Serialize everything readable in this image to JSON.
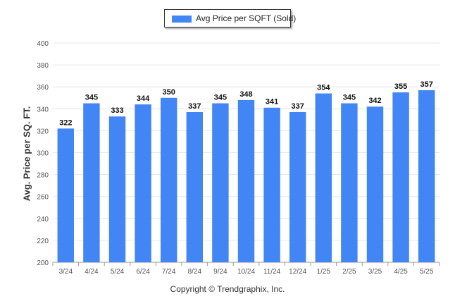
{
  "chart_data": {
    "type": "bar",
    "title": "",
    "xlabel": "",
    "ylabel": "Avg. Price per SQ. FT.",
    "ylim": [
      200,
      400
    ],
    "yticks": [
      200,
      220,
      240,
      260,
      280,
      300,
      320,
      340,
      360,
      380,
      400
    ],
    "grid": true,
    "legend_position": "top-center",
    "categories": [
      "3/24",
      "4/24",
      "5/24",
      "6/24",
      "7/24",
      "8/24",
      "9/24",
      "10/24",
      "11/24",
      "12/24",
      "1/25",
      "2/25",
      "3/25",
      "4/25",
      "5/25"
    ],
    "series": [
      {
        "name": "Avg Price per SQFT (Sold)",
        "color": "#4285f4",
        "values": [
          322,
          345,
          333,
          344,
          350,
          337,
          345,
          348,
          341,
          337,
          354,
          345,
          342,
          355,
          357
        ]
      }
    ]
  },
  "footer": {
    "copyright": "Copyright © Trendgraphix, Inc."
  }
}
